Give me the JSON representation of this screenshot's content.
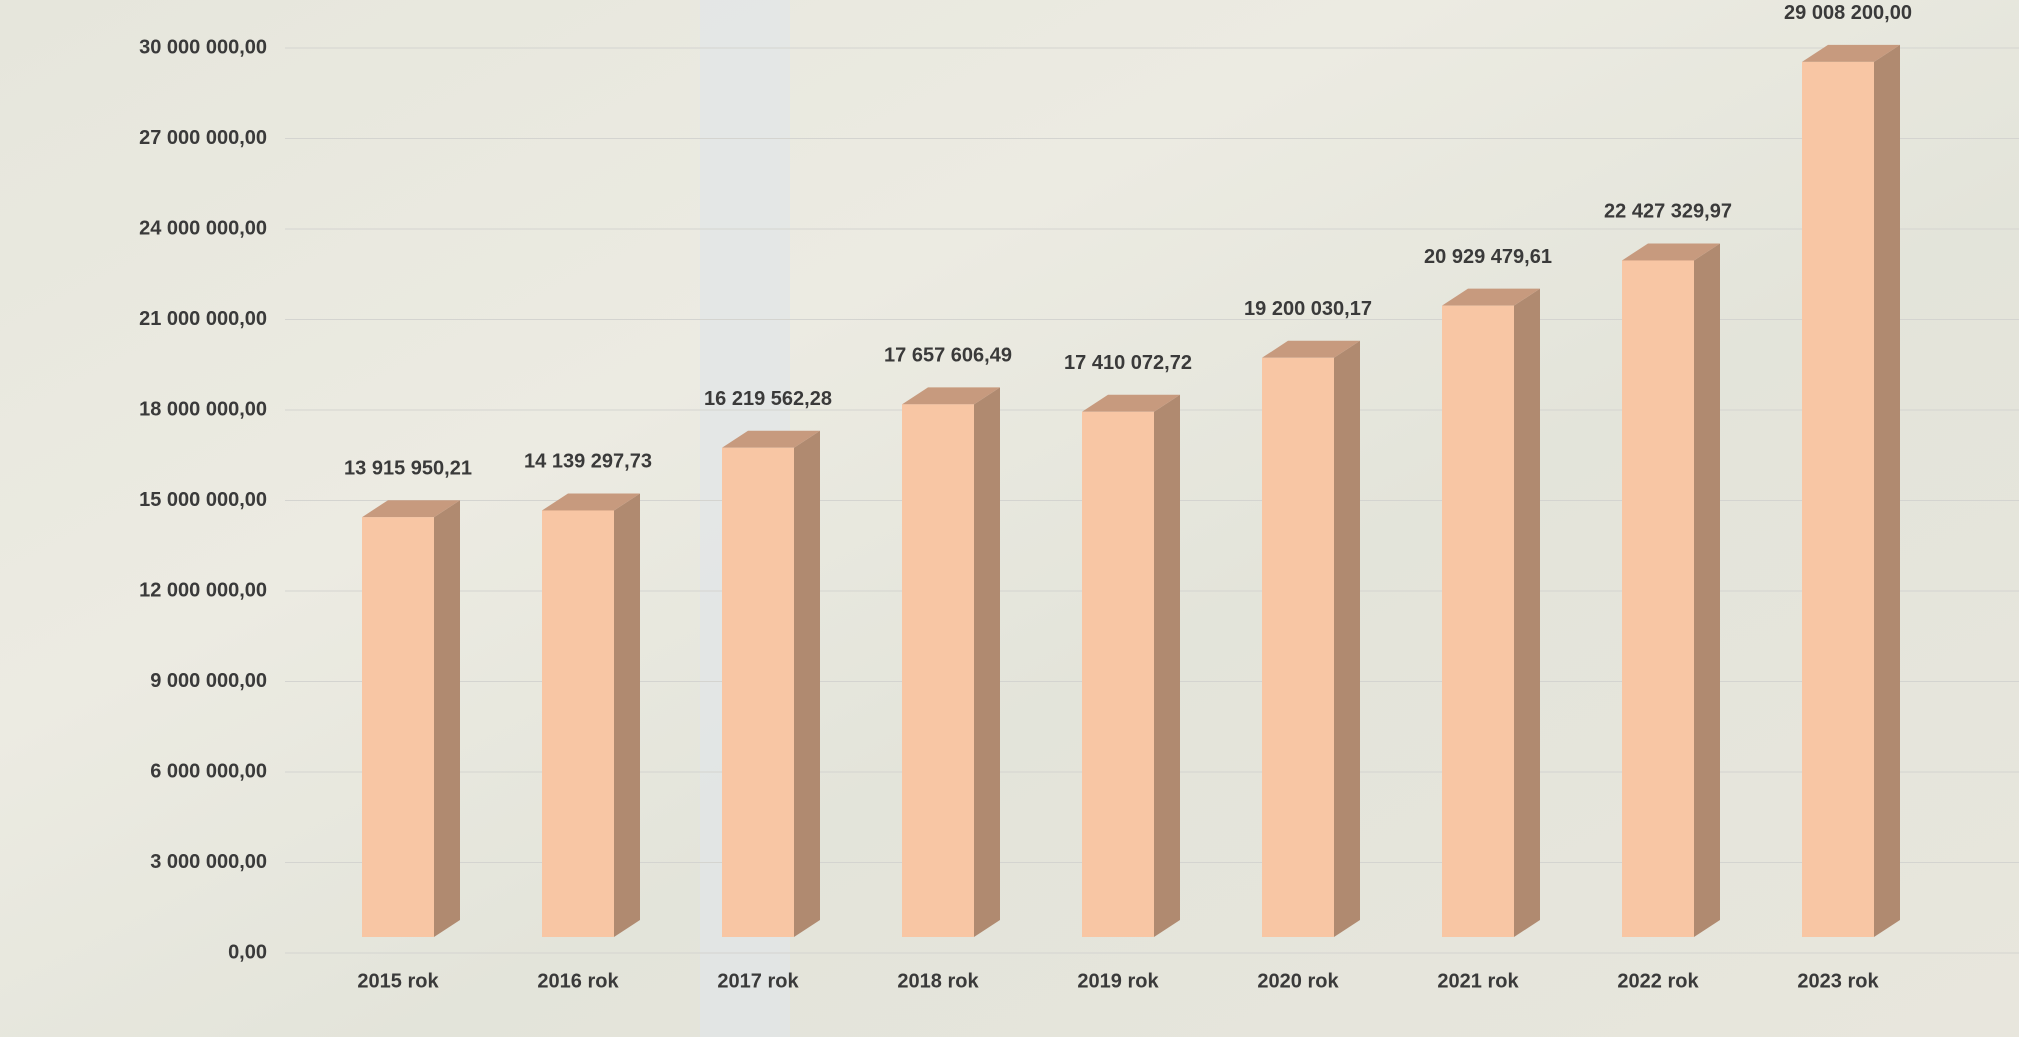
{
  "chart_data": {
    "type": "bar",
    "categories": [
      "2015 rok",
      "2016 rok",
      "2017 rok",
      "2018 rok",
      "2019 rok",
      "2020 rok",
      "2021 rok",
      "2022 rok",
      "2023 rok"
    ],
    "values": [
      13915950.21,
      14139297.73,
      16219562.28,
      17657606.49,
      17410072.72,
      19200030.17,
      20929479.61,
      22427329.97,
      29008200.0
    ],
    "value_labels": [
      "13 915 950,21",
      "14 139 297,73",
      "16 219 562,28",
      "17 657 606,49",
      "17 410 072,72",
      "19 200 030,17",
      "20 929 479,61",
      "22 427 329,97",
      "29 008 200,00"
    ],
    "color": "#f8c6a4",
    "ylim": [
      0,
      30000000
    ],
    "yticks": [
      {
        "value": 0,
        "label": "0,00"
      },
      {
        "value": 3000000,
        "label": "3 000 000,00"
      },
      {
        "value": 6000000,
        "label": "6 000 000,00"
      },
      {
        "value": 9000000,
        "label": "9 000 000,00"
      },
      {
        "value": 12000000,
        "label": "12 000 000,00"
      },
      {
        "value": 15000000,
        "label": "15 000 000,00"
      },
      {
        "value": 18000000,
        "label": "18 000 000,00"
      },
      {
        "value": 21000000,
        "label": "21 000 000,00"
      },
      {
        "value": 24000000,
        "label": "24 000 000,00"
      },
      {
        "value": 27000000,
        "label": "27 000 000,00"
      },
      {
        "value": 30000000,
        "label": "30 000 000,00"
      }
    ],
    "grid": true
  }
}
